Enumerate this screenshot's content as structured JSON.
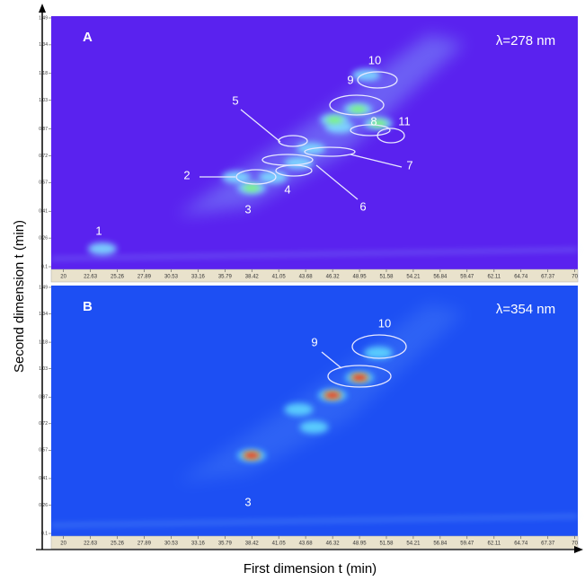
{
  "xlabel": "First dimension t (min)",
  "ylabel": "Second dimension t (min)",
  "chart_data": [
    {
      "type": "heatmap",
      "panel": "A",
      "annotation": "λ=278 nm",
      "background": "#5a22ef",
      "xlim": [
        18.8,
        70.3
      ],
      "xticks": [
        20,
        22.63,
        25.26,
        27.89,
        30.53,
        33.16,
        35.79,
        38.42,
        41.05,
        43.68,
        46.32,
        48.95,
        51.58,
        54.21,
        56.84,
        59.47,
        62.11,
        64.74,
        67.37,
        70
      ],
      "ylim": [
        0.085,
        1.5
      ],
      "yticks": [
        0.1,
        0.26,
        0.41,
        0.57,
        0.72,
        0.87,
        1.03,
        1.18,
        1.34,
        1.49
      ],
      "peak_labels": [
        "1",
        "2",
        "3",
        "4",
        "5",
        "6",
        "7",
        "8",
        "9",
        "10",
        "11"
      ],
      "series": [
        {
          "color": "#7fdcff",
          "x": [
            23.8,
            36.9,
            38.4,
            40.5,
            43.0,
            44.2,
            46.5,
            48.8,
            50.8,
            49.6,
            47.0
          ],
          "y": [
            0.2,
            0.6,
            0.54,
            0.6,
            0.68,
            0.76,
            0.92,
            0.98,
            0.9,
            1.17,
            0.88
          ]
        },
        {
          "color": "#7dff5a",
          "x": [
            38.4,
            46.5,
            48.8,
            50.8
          ],
          "y": [
            0.54,
            0.92,
            0.98,
            0.9
          ]
        }
      ]
    },
    {
      "type": "heatmap",
      "panel": "B",
      "annotation": "λ=354 nm",
      "background": "#1d4ff3",
      "xlim": [
        18.8,
        70.3
      ],
      "xticks": [
        20,
        22.63,
        25.26,
        27.89,
        30.53,
        33.16,
        35.79,
        38.42,
        41.05,
        43.68,
        46.32,
        48.95,
        51.58,
        54.21,
        56.84,
        59.47,
        62.11,
        64.74,
        67.37,
        70
      ],
      "ylim": [
        0.085,
        1.5
      ],
      "yticks": [
        0.1,
        0.26,
        0.41,
        0.57,
        0.72,
        0.87,
        1.03,
        1.18,
        1.34,
        1.49
      ],
      "peak_labels": [
        "3",
        "9",
        "10"
      ],
      "series": [
        {
          "color": "#5ed8ff",
          "x": [
            38.4,
            46.3,
            48.95,
            50.8,
            44.5,
            43.0
          ],
          "y": [
            0.54,
            0.88,
            0.98,
            1.12,
            0.7,
            0.8
          ]
        },
        {
          "color": "#ffe23a",
          "x": [
            38.4,
            46.3,
            48.95
          ],
          "y": [
            0.54,
            0.88,
            0.98
          ]
        },
        {
          "color": "#e8160c",
          "x": [
            38.4,
            46.3,
            48.95
          ],
          "y": [
            0.54,
            0.88,
            0.98
          ]
        }
      ]
    }
  ]
}
